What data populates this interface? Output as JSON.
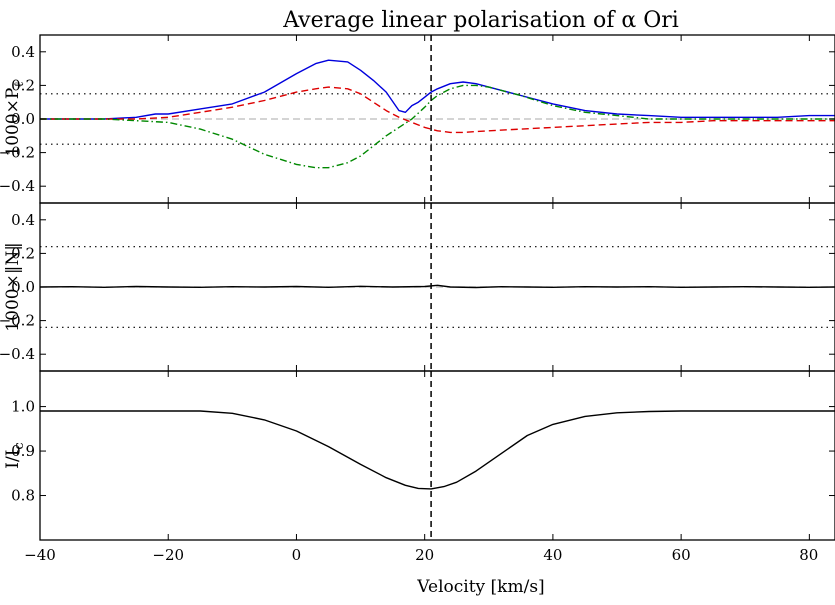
{
  "chart_data": {
    "type": "line",
    "title": "Average linear polarisation of α Ori",
    "xlabel": "Velocity [km/s]",
    "xlim": [
      -40,
      84
    ],
    "x_ticks": [
      -40,
      -20,
      0,
      20,
      40,
      60,
      80
    ],
    "x_tick_labels": [
      "−40",
      "−20",
      "0",
      "20",
      "40",
      "60",
      "80"
    ],
    "vertical_marker_x": 21,
    "panels": [
      {
        "id": "pl",
        "ylabel_main": "1000×P",
        "ylabel_sub": "ℓ",
        "ylim": [
          -0.5,
          0.5
        ],
        "y_ticks": [
          0.4,
          0.2,
          0.0,
          -0.2,
          -0.4
        ],
        "y_tick_labels": [
          "0.4",
          "0.2",
          "0.0",
          "−0.2",
          "−0.4"
        ],
        "hlines": [
          {
            "y": 0.15,
            "style": "dotted",
            "color": "#000000"
          },
          {
            "y": -0.15,
            "style": "dotted",
            "color": "#000000"
          },
          {
            "y": 0.0,
            "style": "dashed",
            "color": "#bbbbbb"
          }
        ],
        "series": [
          {
            "key": "blue",
            "color": "#0000dd",
            "style": "solid",
            "x": [
              -40,
              -30,
              -25,
              -22,
              -20,
              -15,
              -10,
              -5,
              0,
              3,
              5,
              8,
              10,
              12,
              14,
              16,
              17,
              18,
              19,
              20,
              21,
              22,
              24,
              26,
              28,
              30,
              32,
              35,
              40,
              45,
              50,
              55,
              60,
              65,
              70,
              75,
              80,
              84
            ],
            "y": [
              0.0,
              0.0,
              0.01,
              0.03,
              0.03,
              0.06,
              0.09,
              0.16,
              0.27,
              0.33,
              0.35,
              0.34,
              0.29,
              0.23,
              0.16,
              0.05,
              0.04,
              0.08,
              0.1,
              0.13,
              0.16,
              0.18,
              0.21,
              0.22,
              0.21,
              0.19,
              0.17,
              0.14,
              0.09,
              0.05,
              0.03,
              0.02,
              0.01,
              0.01,
              0.01,
              0.01,
              0.02,
              0.02
            ]
          },
          {
            "key": "red",
            "color": "#dd0000",
            "style": "dashed",
            "x": [
              -40,
              -30,
              -25,
              -20,
              -15,
              -10,
              -5,
              0,
              3,
              5,
              8,
              10,
              12,
              14,
              16,
              18,
              20,
              21,
              22,
              24,
              26,
              30,
              35,
              40,
              45,
              50,
              55,
              60,
              65,
              70,
              75,
              80,
              84
            ],
            "y": [
              0.0,
              0.0,
              0.0,
              0.01,
              0.04,
              0.07,
              0.11,
              0.16,
              0.18,
              0.19,
              0.18,
              0.15,
              0.1,
              0.05,
              0.01,
              -0.02,
              -0.05,
              -0.06,
              -0.07,
              -0.08,
              -0.08,
              -0.07,
              -0.06,
              -0.05,
              -0.04,
              -0.03,
              -0.02,
              -0.02,
              -0.01,
              -0.01,
              -0.01,
              -0.01,
              -0.01
            ]
          },
          {
            "key": "green",
            "color": "#008800",
            "style": "dashdot",
            "x": [
              -40,
              -30,
              -25,
              -20,
              -15,
              -10,
              -5,
              0,
              3,
              5,
              8,
              10,
              12,
              14,
              16,
              18,
              20,
              21,
              22,
              24,
              26,
              28,
              30,
              35,
              40,
              45,
              50,
              55,
              60,
              70,
              80,
              84
            ],
            "y": [
              0.0,
              0.0,
              -0.01,
              -0.02,
              -0.06,
              -0.12,
              -0.21,
              -0.27,
              -0.29,
              -0.29,
              -0.26,
              -0.22,
              -0.16,
              -0.1,
              -0.05,
              0.0,
              0.07,
              0.11,
              0.14,
              0.18,
              0.2,
              0.2,
              0.19,
              0.14,
              0.08,
              0.04,
              0.02,
              0.0,
              0.0,
              0.0,
              0.0,
              0.0
            ]
          }
        ]
      },
      {
        "id": "null",
        "ylabel_main": "1000×‖N‖",
        "ylabel_sub": "",
        "ylim": [
          -0.5,
          0.5
        ],
        "y_ticks": [
          0.4,
          0.2,
          0.0,
          -0.2,
          -0.4
        ],
        "y_tick_labels": [
          "0.4",
          "0.2",
          "0.0",
          "−0.2",
          "−0.4"
        ],
        "hlines": [
          {
            "y": 0.24,
            "style": "dotted",
            "color": "#000000"
          },
          {
            "y": -0.24,
            "style": "dotted",
            "color": "#000000"
          },
          {
            "y": 0.0,
            "style": "dashed",
            "color": "#bbbbbb"
          }
        ],
        "series": [
          {
            "key": "null",
            "color": "#000000",
            "style": "solid",
            "x": [
              -40,
              -35,
              -30,
              -25,
              -20,
              -15,
              -10,
              -5,
              0,
              5,
              10,
              15,
              20,
              22,
              24,
              28,
              32,
              36,
              40,
              45,
              50,
              55,
              60,
              65,
              70,
              75,
              80,
              84
            ],
            "y": [
              0.0,
              0.002,
              -0.002,
              0.003,
              0.0,
              -0.002,
              0.002,
              0.0,
              0.003,
              -0.002,
              0.004,
              0.0,
              0.003,
              0.01,
              0.0,
              -0.003,
              0.002,
              0.0,
              -0.002,
              0.002,
              0.0,
              0.002,
              -0.002,
              0.0,
              0.002,
              0.0,
              -0.002,
              0.0
            ]
          }
        ]
      },
      {
        "id": "intensity",
        "ylabel_main": "I/I",
        "ylabel_sub": "c",
        "ylim": [
          0.7,
          1.08
        ],
        "y_ticks": [
          1.0,
          0.9,
          0.8
        ],
        "y_tick_labels": [
          "1.0",
          "0.9",
          "0.8"
        ],
        "hlines": [],
        "series": [
          {
            "key": "intensity",
            "color": "#000000",
            "style": "solid",
            "x": [
              -40,
              -30,
              -20,
              -15,
              -10,
              -5,
              0,
              5,
              10,
              14,
              17,
              19,
              21,
              23,
              25,
              28,
              32,
              36,
              40,
              45,
              50,
              55,
              60,
              70,
              84
            ],
            "y": [
              0.99,
              0.99,
              0.99,
              0.99,
              0.985,
              0.97,
              0.945,
              0.91,
              0.87,
              0.84,
              0.823,
              0.816,
              0.815,
              0.82,
              0.83,
              0.855,
              0.895,
              0.935,
              0.96,
              0.978,
              0.986,
              0.989,
              0.99,
              0.99,
              0.99
            ]
          }
        ]
      }
    ]
  }
}
